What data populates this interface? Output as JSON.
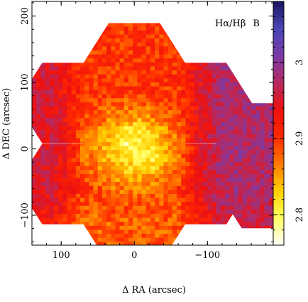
{
  "chart_data": {
    "type": "heatmap",
    "title": "",
    "annotation_parts": [
      "Hα/Hβ",
      "B"
    ],
    "xlabel": "Δ RA (arcsec)",
    "ylabel": "Δ DEC (arcsec)",
    "xlim": [
      140,
      -190
    ],
    "ylim": [
      -145,
      222
    ],
    "x_ticks": [
      100,
      0,
      -100
    ],
    "x_tick_labels": [
      "100",
      "0",
      "−100"
    ],
    "y_ticks": [
      -100,
      0,
      100,
      200
    ],
    "y_tick_labels": [
      "−100",
      "0",
      "100",
      "200"
    ],
    "colorbar": {
      "range": [
        2.76,
        3.08
      ],
      "ticks": [
        2.8,
        2.9,
        3.0
      ],
      "tick_labels": [
        "2.8",
        "2.9",
        "3"
      ],
      "colors": [
        "#ffffff",
        "#ffff60",
        "#ffd000",
        "#ff7a00",
        "#ff2a00",
        "#ee1010",
        "#b52a60",
        "#7a3aa8",
        "#4a46b6",
        "#1a1460"
      ]
    },
    "field_shape": "hexagonal tiling of IFU pointings (7-hex flower plus two extra hexagons to the west)",
    "structure": {
      "center_value": 2.8,
      "background_value": 2.9,
      "west_value": 2.98,
      "east_value": 2.95,
      "south_value": 2.88,
      "hotspots": [
        {
          "x": 2,
          "y": 12,
          "value": 2.78
        },
        {
          "x": -18,
          "y": -12,
          "value": 2.81
        },
        {
          "x": -5,
          "y": 20,
          "value": 2.82
        }
      ]
    }
  }
}
